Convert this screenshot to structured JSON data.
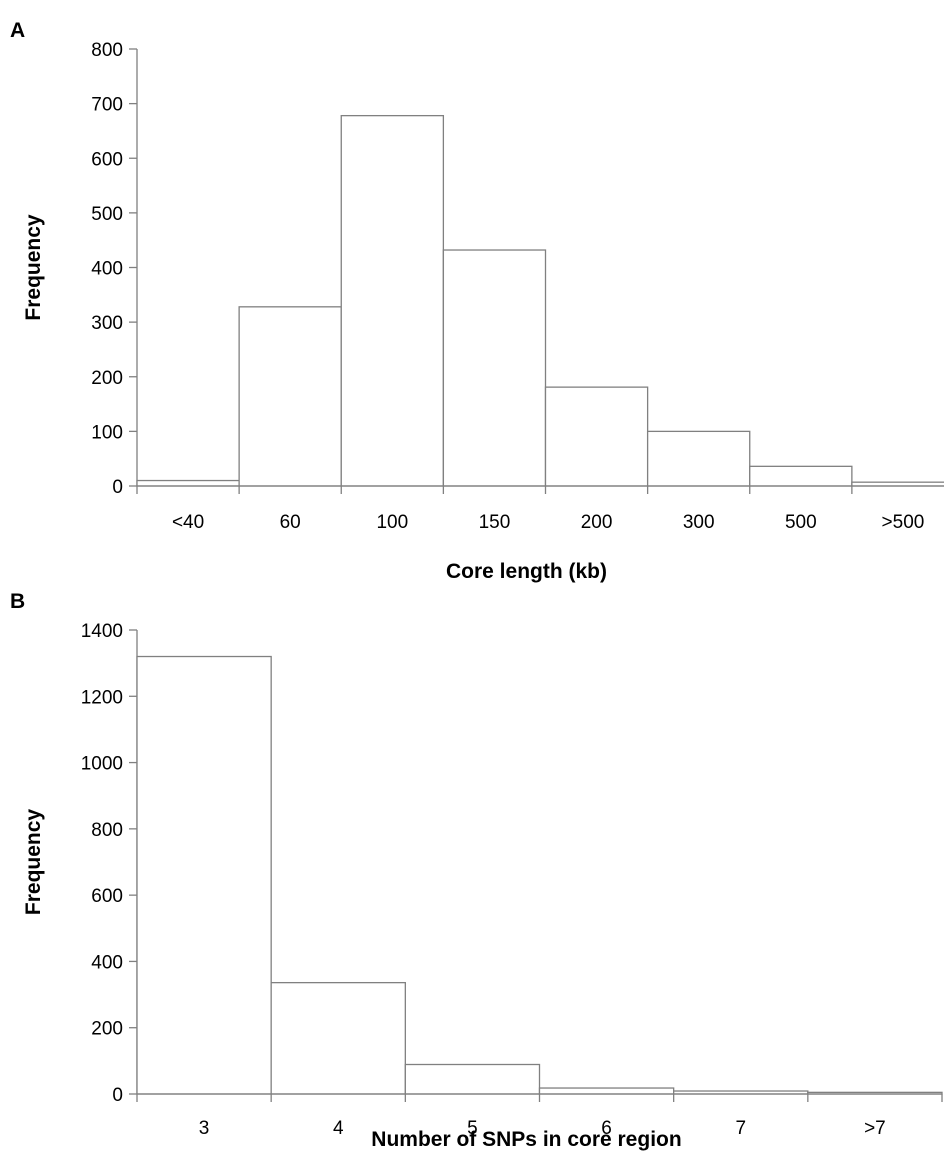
{
  "chart_data": [
    {
      "type": "bar",
      "panel_label": "A",
      "categories": [
        "<40",
        "60",
        "100",
        "150",
        "200",
        "300",
        "500",
        ">500"
      ],
      "values": [
        10,
        328,
        678,
        432,
        181,
        100,
        36,
        7
      ],
      "xlabel": "Core length (kb)",
      "ylabel": "Frequency",
      "ylim": [
        0,
        800
      ],
      "yticks": [
        0,
        100,
        200,
        300,
        400,
        500,
        600,
        700,
        800
      ],
      "grid": false,
      "legend": "none"
    },
    {
      "type": "bar",
      "panel_label": "B",
      "categories": [
        "3",
        "4",
        "5",
        "6",
        "7",
        ">7"
      ],
      "values": [
        1320,
        336,
        89,
        18,
        9,
        5
      ],
      "xlabel": "Number of SNPs in core region",
      "ylabel": "Frequency",
      "ylim": [
        0,
        1400
      ],
      "yticks": [
        0,
        200,
        400,
        600,
        800,
        1000,
        1200,
        1400
      ],
      "grid": false,
      "legend": "none"
    }
  ]
}
